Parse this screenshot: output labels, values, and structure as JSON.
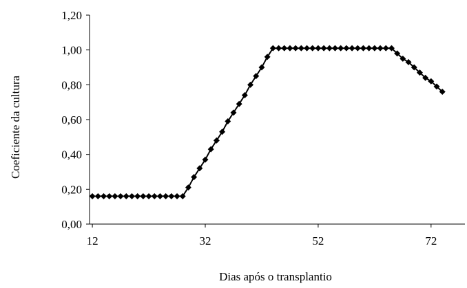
{
  "chart_data": {
    "type": "line",
    "x_label": "Dias após o transplantio",
    "y_label": "Coeficiente da cultura",
    "x": [
      12,
      13,
      14,
      15,
      16,
      17,
      18,
      19,
      20,
      21,
      22,
      23,
      24,
      25,
      26,
      27,
      28,
      29,
      30,
      31,
      32,
      33,
      34,
      35,
      36,
      37,
      38,
      39,
      40,
      41,
      42,
      43,
      44,
      45,
      46,
      47,
      48,
      49,
      50,
      51,
      52,
      53,
      54,
      55,
      56,
      57,
      58,
      59,
      60,
      61,
      62,
      63,
      64,
      65,
      66,
      67,
      68,
      69,
      70,
      71,
      72,
      73,
      74
    ],
    "series": [
      {
        "color": "#000000",
        "values": [
          0.16,
          0.16,
          0.16,
          0.16,
          0.16,
          0.16,
          0.16,
          0.16,
          0.16,
          0.16,
          0.16,
          0.16,
          0.16,
          0.16,
          0.16,
          0.16,
          0.16,
          0.21,
          0.27,
          0.32,
          0.37,
          0.43,
          0.48,
          0.53,
          0.59,
          0.64,
          0.69,
          0.74,
          0.8,
          0.85,
          0.9,
          0.96,
          1.01,
          1.01,
          1.01,
          1.01,
          1.01,
          1.01,
          1.01,
          1.01,
          1.01,
          1.01,
          1.01,
          1.01,
          1.01,
          1.01,
          1.01,
          1.01,
          1.01,
          1.01,
          1.01,
          1.01,
          1.01,
          1.01,
          0.98,
          0.95,
          0.93,
          0.9,
          0.87,
          0.84,
          0.82,
          0.79,
          0.76
        ]
      }
    ],
    "xlim": [
      11.5,
      78
    ],
    "xticks": [
      12,
      32,
      52,
      72
    ],
    "ylim": [
      0,
      1.2
    ],
    "yticks": [
      {
        "value": 0,
        "label": "0,00"
      },
      {
        "value": 0.2,
        "label": "0,20"
      },
      {
        "value": 0.4,
        "label": "0,40"
      },
      {
        "value": 0.6,
        "label": "0,60"
      },
      {
        "value": 0.8,
        "label": "0,80"
      },
      {
        "value": 1.0,
        "label": "1,00"
      },
      {
        "value": 1.2,
        "label": "1,20"
      }
    ],
    "grid": false
  }
}
